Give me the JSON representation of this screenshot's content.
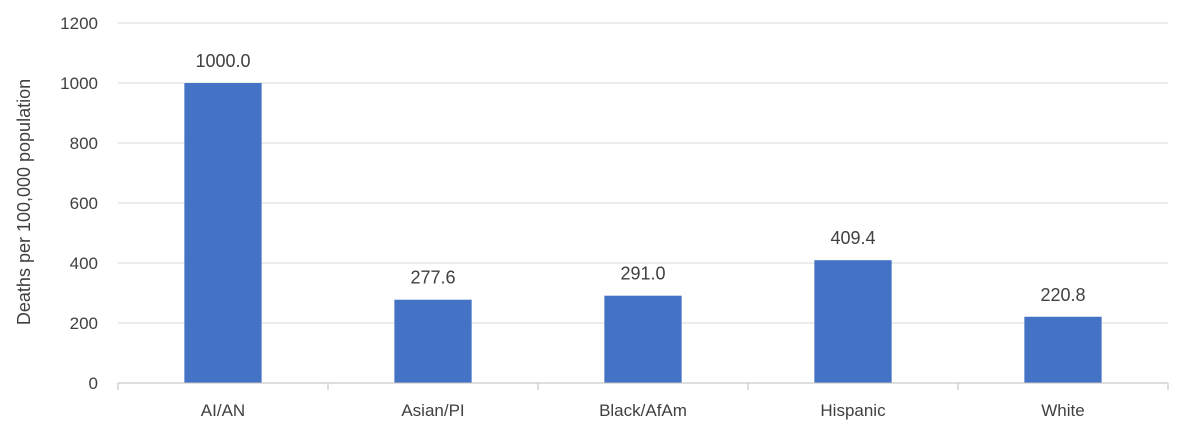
{
  "chart_data": {
    "type": "bar",
    "title": "",
    "xlabel": "",
    "ylabel": "Deaths per 100,000 population",
    "categories": [
      "AI/AN",
      "Asian/PI",
      "Black/AfAm",
      "Hispanic",
      "White"
    ],
    "values": [
      1000.0,
      277.6,
      291.0,
      409.4,
      220.8
    ],
    "value_labels": [
      "1000.0",
      "277.6",
      "291.0",
      "409.4",
      "220.8"
    ],
    "ylim": [
      0,
      1200
    ],
    "yticks": [
      0,
      200,
      400,
      600,
      800,
      1000,
      1200
    ],
    "ytick_labels": [
      "0",
      "200",
      "400",
      "600",
      "800",
      "1000",
      "1200"
    ],
    "grid": true,
    "legend": "none",
    "colors": {
      "bar": "#4472C4",
      "grid": "#D9D9D9",
      "axis": "#BFBFBF",
      "text": "#404040"
    }
  }
}
